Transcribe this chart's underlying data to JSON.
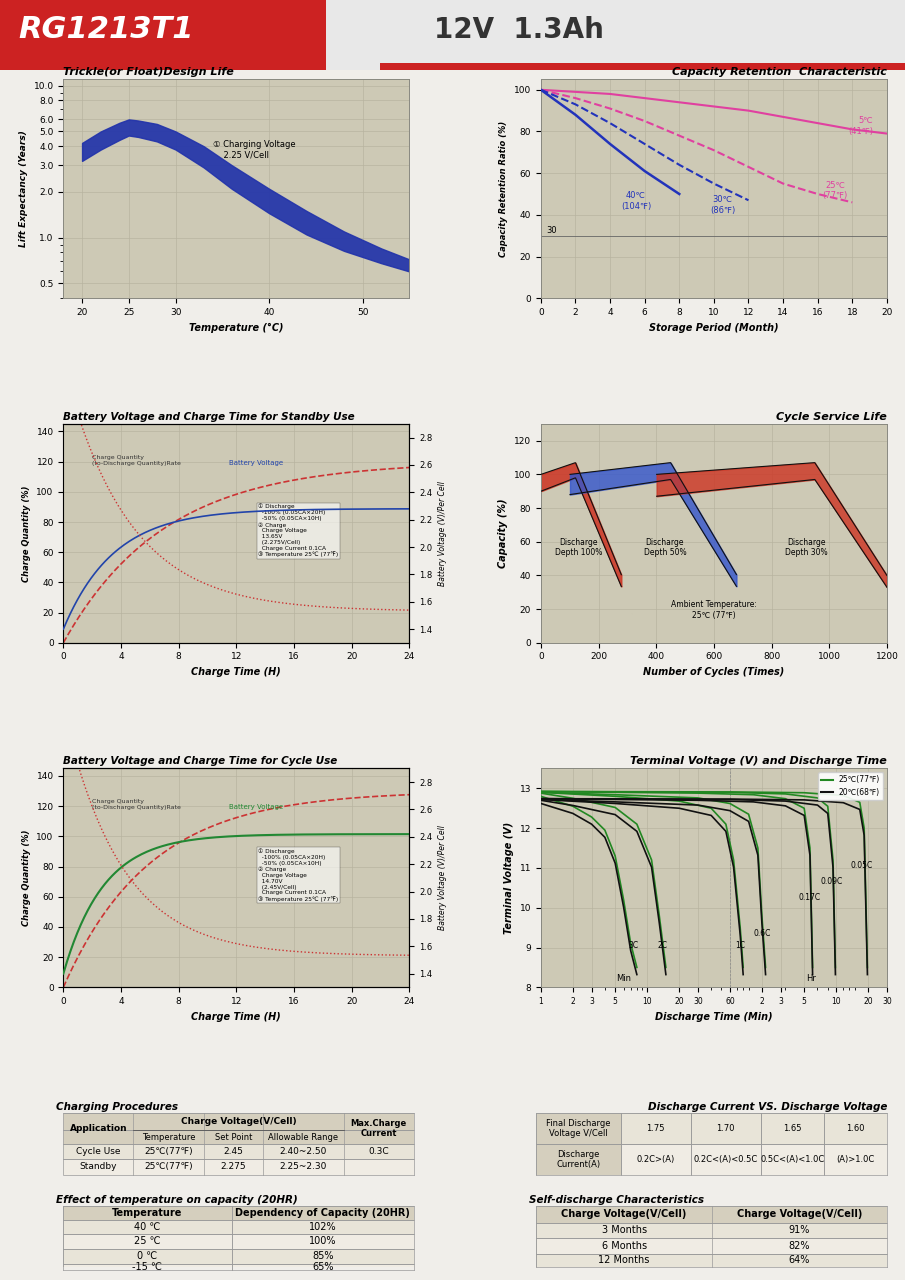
{
  "header_title": "RG1213T1",
  "header_subtitle": "12V  1.3Ah",
  "header_red": "#cc2222",
  "header_gray": "#e8e8e8",
  "panel_bg": "#cdc9b5",
  "grid_color": "#b8b4a0",
  "section1_title": "Trickle(or Float)Design Life",
  "section1_xlabel": "Temperature (°C)",
  "section1_ylabel": "Lift Expectancy (Years)",
  "section2_title": "Capacity Retention  Characteristic",
  "section2_xlabel": "Storage Period (Month)",
  "section2_ylabel": "Capacity Retention Ratio (%)",
  "section3_title": "Battery Voltage and Charge Time for Standby Use",
  "section3_xlabel": "Charge Time (H)",
  "section3_ylabel1": "Charge Quantity (%)",
  "section4_title": "Cycle Service Life",
  "section4_xlabel": "Number of Cycles (Times)",
  "section4_ylabel": "Capacity (%)",
  "section5_title": "Battery Voltage and Charge Time for Cycle Use",
  "section5_xlabel": "Charge Time (H)",
  "section6_title": "Terminal Voltage (V) and Discharge Time",
  "section6_xlabel": "Discharge Time (Min)",
  "section6_ylabel": "Terminal Voltage (V)",
  "section7_title": "Charging Procedures",
  "section8_title": "Discharge Current VS. Discharge Voltage",
  "section9_title": "Effect of temperature on capacity (20HR)",
  "section10_title": "Self-discharge Characteristics"
}
